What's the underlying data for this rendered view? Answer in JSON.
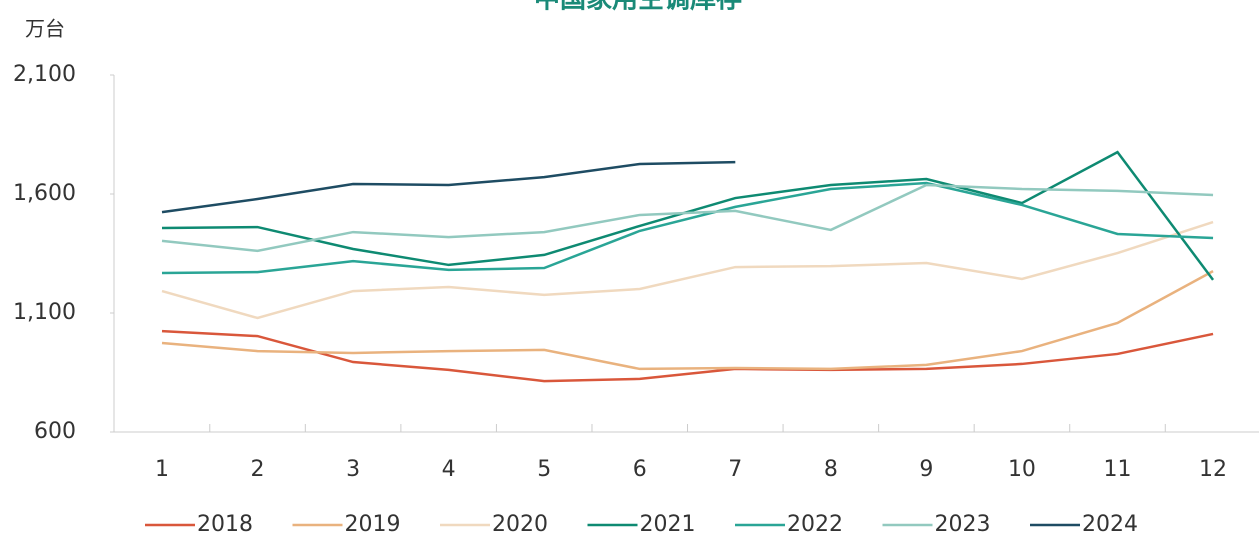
{
  "chart_data": {
    "type": "line",
    "title": "中国家用空调库存",
    "y_label": "万台",
    "categories": [
      "1",
      "2",
      "3",
      "4",
      "5",
      "6",
      "7",
      "8",
      "9",
      "10",
      "11",
      "12"
    ],
    "ylim": [
      600,
      2100
    ],
    "yticks": [
      600,
      {
        "value": 1100,
        "label": "1,100"
      },
      {
        "value": 1600,
        "label": "1,600"
      },
      {
        "value": 2100,
        "label": "2,100"
      }
    ],
    "legend": "bottom",
    "series": [
      {
        "name": "2018",
        "color": "#d9573b",
        "values": [
          1024,
          1003,
          894,
          861,
          814,
          823,
          865,
          861,
          865,
          886,
          928,
          1012
        ]
      },
      {
        "name": "2019",
        "color": "#e9b27e",
        "values": [
          974,
          940,
          932,
          940,
          945,
          865,
          869,
          865,
          882,
          940,
          1058,
          1276
        ]
      },
      {
        "name": "2020",
        "color": "#f0d9bf",
        "values": [
          1192,
          1079,
          1192,
          1209,
          1176,
          1201,
          1293,
          1297,
          1310,
          1243,
          1352,
          1482
        ]
      },
      {
        "name": "2021",
        "color": "#0e8a72",
        "values": [
          1457,
          1461,
          1369,
          1302,
          1344,
          1466,
          1583,
          1638,
          1663,
          1562,
          1776,
          1239
        ]
      },
      {
        "name": "2022",
        "color": "#2aa596",
        "values": [
          1268,
          1272,
          1318,
          1281,
          1289,
          1445,
          1546,
          1621,
          1646,
          1554,
          1432,
          1415
        ]
      },
      {
        "name": "2023",
        "color": "#92c9bf",
        "values": [
          1403,
          1361,
          1440,
          1419,
          1440,
          1512,
          1529,
          1449,
          1638,
          1621,
          1613,
          1596
        ]
      },
      {
        "name": "2024",
        "color": "#1e4c63",
        "values": [
          1524,
          1579,
          1642,
          1638,
          1671,
          1726,
          1734,
          null,
          null,
          null,
          null,
          null
        ]
      }
    ]
  }
}
